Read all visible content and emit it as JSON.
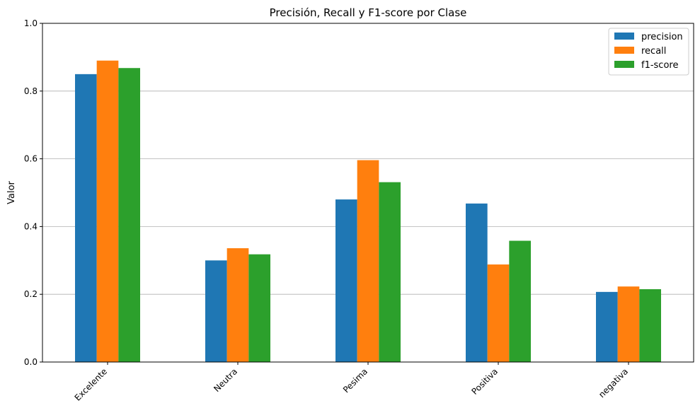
{
  "chart_data": {
    "type": "bar",
    "title": "Precisión, Recall y F1-score por Clase",
    "xlabel": "",
    "ylabel": "Valor",
    "ylim": [
      0,
      1
    ],
    "yticks": [
      0.0,
      0.2,
      0.4,
      0.6,
      0.8,
      1.0
    ],
    "ytick_labels": [
      "0.0",
      "0.2",
      "0.4",
      "0.6",
      "0.8",
      "1.0"
    ],
    "grid": "y",
    "legend_position": "top-right",
    "categories": [
      "Excelente",
      "Neutra",
      "Pesima",
      "Positiva",
      "negativa"
    ],
    "series": [
      {
        "name": "precision",
        "color": "#1f77b4",
        "values": [
          0.85,
          0.3,
          0.48,
          0.468,
          0.207
        ]
      },
      {
        "name": "recall",
        "color": "#ff7f0e",
        "values": [
          0.89,
          0.336,
          0.596,
          0.288,
          0.223
        ]
      },
      {
        "name": "f1-score",
        "color": "#2ca02c",
        "values": [
          0.868,
          0.318,
          0.531,
          0.358,
          0.215
        ]
      }
    ]
  }
}
